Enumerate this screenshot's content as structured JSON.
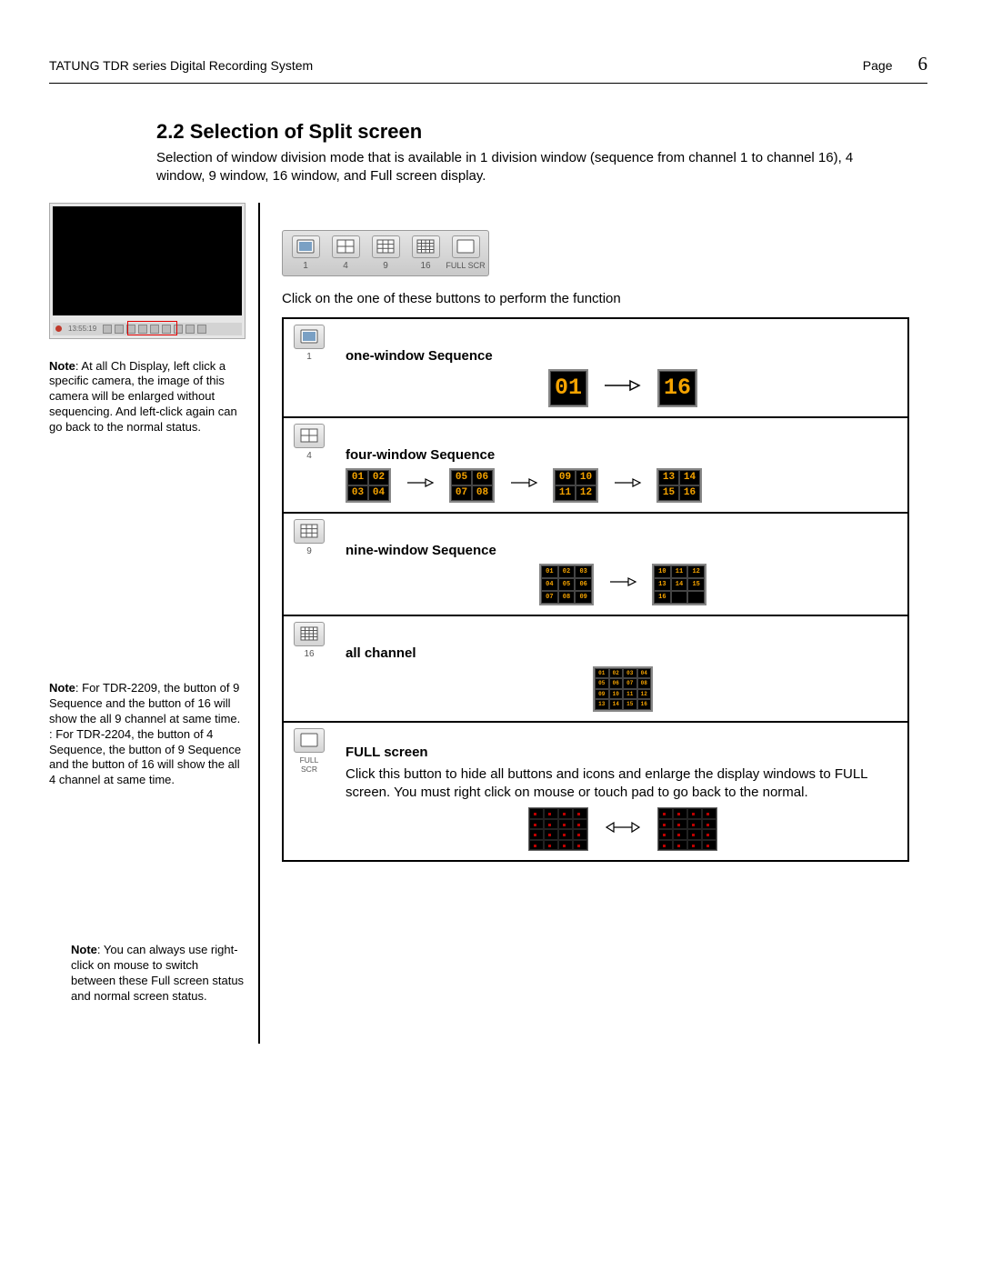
{
  "header": {
    "doc": "TATUNG TDR series Digital Recording System",
    "page_word": "Page",
    "page_num": "6"
  },
  "section": {
    "title": "2.2 Selection of Split screen",
    "intro": "Selection of window division mode that is available in 1 division window (sequence from channel 1 to channel 16), 4 window, 9 window, 16 window, and Full screen display."
  },
  "notes": {
    "n1": "At all Ch Display, left click a specific camera, the image of this camera will be enlarged without sequencing. And left-click again can go back to the normal status.",
    "n2": "For TDR-2209, the button of 9 Sequence and the button of 16 will show the all 9 channel at same time. : For TDR-2204, the button of 4 Sequence, the button of 9 Sequence and the button of 16 will show the all 4 channel at same time.",
    "n3": "You can always use right-click on mouse to switch between these Full screen status and normal screen status.",
    "label": "Note"
  },
  "toolbar": {
    "caption_line": "Click on the one of these buttons to perform the function",
    "items": [
      {
        "kind": "grid1",
        "label": "1"
      },
      {
        "kind": "grid4",
        "label": "4"
      },
      {
        "kind": "grid9",
        "label": "9"
      },
      {
        "kind": "grid16",
        "label": "16"
      },
      {
        "kind": "full",
        "label": "FULL SCR"
      }
    ]
  },
  "rows": {
    "r1": {
      "title": "one-window Sequence",
      "ch_from": "01",
      "ch_to": "16"
    },
    "r2": {
      "title": "four-window Sequence",
      "groups": [
        [
          "01",
          "02",
          "03",
          "04"
        ],
        [
          "05",
          "06",
          "07",
          "08"
        ],
        [
          "09",
          "10",
          "11",
          "12"
        ],
        [
          "13",
          "14",
          "15",
          "16"
        ]
      ]
    },
    "r3": {
      "title": "nine-window Sequence",
      "groups": [
        [
          "01",
          "02",
          "03",
          "04",
          "05",
          "06",
          "07",
          "08",
          "09"
        ],
        [
          "10",
          "11",
          "12",
          "13",
          "14",
          "15",
          "16",
          "",
          ""
        ]
      ]
    },
    "r4": {
      "title": "all channel",
      "cells": [
        "01",
        "02",
        "03",
        "04",
        "05",
        "06",
        "07",
        "08",
        "09",
        "10",
        "11",
        "12",
        "13",
        "14",
        "15",
        "16"
      ]
    },
    "r5": {
      "title": "FULL screen",
      "body": "Click this button to hide all buttons and icons and enlarge the display windows to FULL screen. You must right click on mouse or touch pad to go back to the normal."
    }
  },
  "colors": {
    "channel_text": "#f5a300",
    "border": "#000000"
  }
}
